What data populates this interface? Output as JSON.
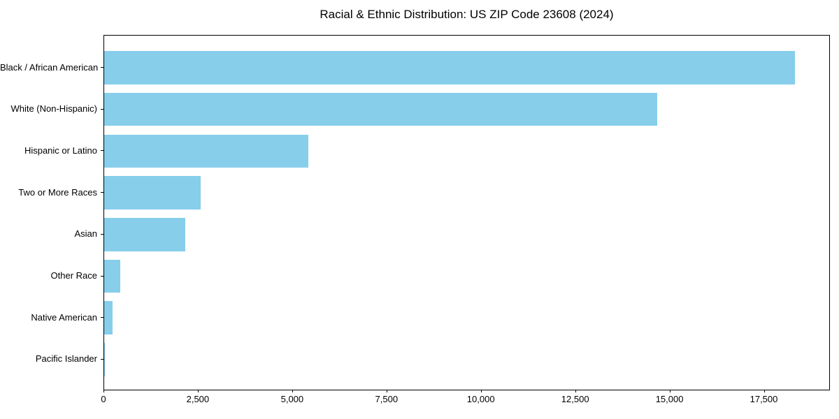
{
  "figure": {
    "background": "#ffffff",
    "text_color": "#000000",
    "axis_color": "#000000"
  },
  "chart_data": {
    "type": "bar",
    "orientation": "horizontal",
    "title": "Racial & Ethnic Distribution: US ZIP Code 23608 (2024)",
    "categories": [
      "Black / African American",
      "White (Non-Hispanic)",
      "Hispanic or Latino",
      "Two or More Races",
      "Asian",
      "Other Race",
      "Native American",
      "Pacific Islander"
    ],
    "values": [
      18300,
      14650,
      5400,
      2550,
      2150,
      430,
      220,
      20
    ],
    "xlabel": "",
    "ylabel": "",
    "xlim": [
      0,
      19250
    ],
    "x_ticks": [
      0,
      2500,
      5000,
      7500,
      10000,
      12500,
      15000,
      17500
    ],
    "x_tick_labels": [
      "0",
      "2,500",
      "5,000",
      "7,500",
      "10,000",
      "12,500",
      "15,000",
      "17,500"
    ],
    "bar_color": "#87ceeb",
    "grid": false,
    "legend_position": null
  }
}
